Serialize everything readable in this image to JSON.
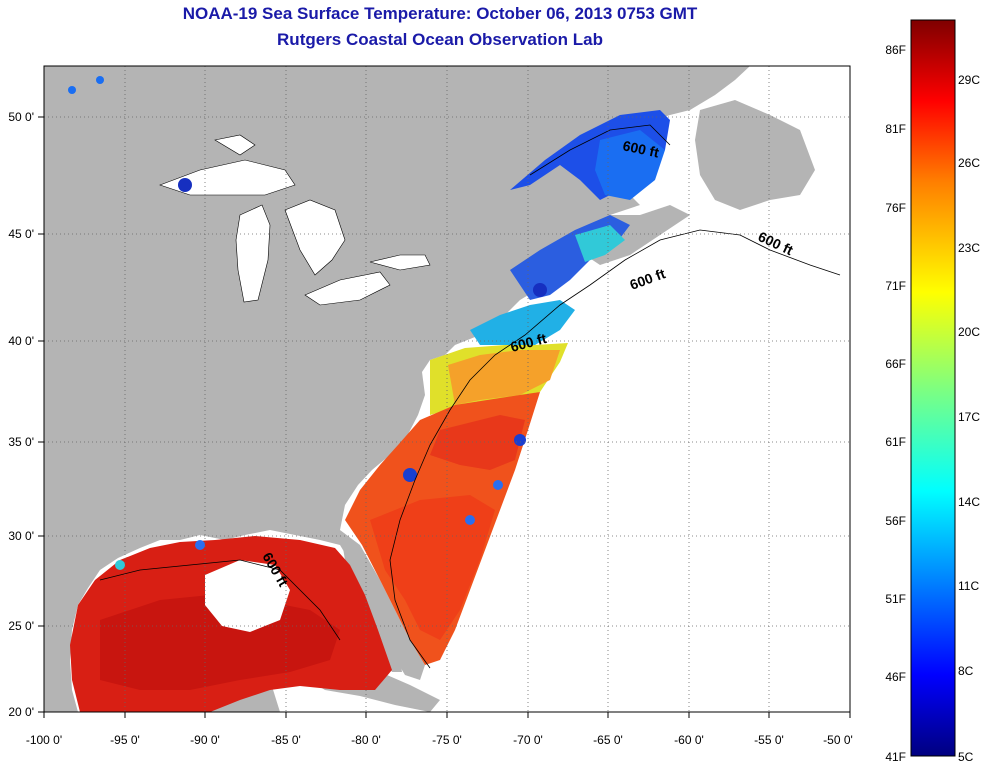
{
  "title": {
    "line1": "NOAA-19 Sea Surface Temperature:  October 06, 2013 0753 GMT",
    "line2": "Rutgers Coastal Ocean Observation Lab"
  },
  "map": {
    "lon_range": [
      -100,
      -50
    ],
    "lat_range": [
      20,
      52
    ],
    "lon_ticks": [
      "-100 0'",
      "-95 0'",
      "-90 0'",
      "-85 0'",
      "-80 0'",
      "-75 0'",
      "-70 0'",
      "-65 0'",
      "-60 0'",
      "-55 0'",
      "-50 0'"
    ],
    "lat_ticks": [
      {
        "lat": 50,
        "label": "50 0'"
      },
      {
        "lat": 45,
        "label": "45 0'"
      },
      {
        "lat": 40,
        "label": "40 0'"
      },
      {
        "lat": 35,
        "label": "35 0'"
      },
      {
        "lat": 30,
        "label": "30 0'"
      },
      {
        "lat": 25,
        "label": "25 0'"
      },
      {
        "lat": 20,
        "label": "20 0'"
      }
    ],
    "grid": "dotted",
    "land_color": "#b4b4b4",
    "no_data_color": "#ffffff",
    "contour_labels": [
      "600 ft",
      "600 ft",
      "600 ft",
      "600 ft",
      "600 ft"
    ]
  },
  "colorbar": {
    "fahrenheit_labels": [
      "86F",
      "81F",
      "76F",
      "71F",
      "66F",
      "61F",
      "56F",
      "51F",
      "46F",
      "41F"
    ],
    "celsius_labels": [
      "29C",
      "26C",
      "23C",
      "20C",
      "17C",
      "14C",
      "11C",
      "8C",
      "5C"
    ],
    "colormap": "jet",
    "colors": [
      "#00007f",
      "#0000ff",
      "#007fff",
      "#00ffff",
      "#7fff7f",
      "#ffff00",
      "#ff7f00",
      "#ff0000",
      "#7f0000"
    ]
  }
}
